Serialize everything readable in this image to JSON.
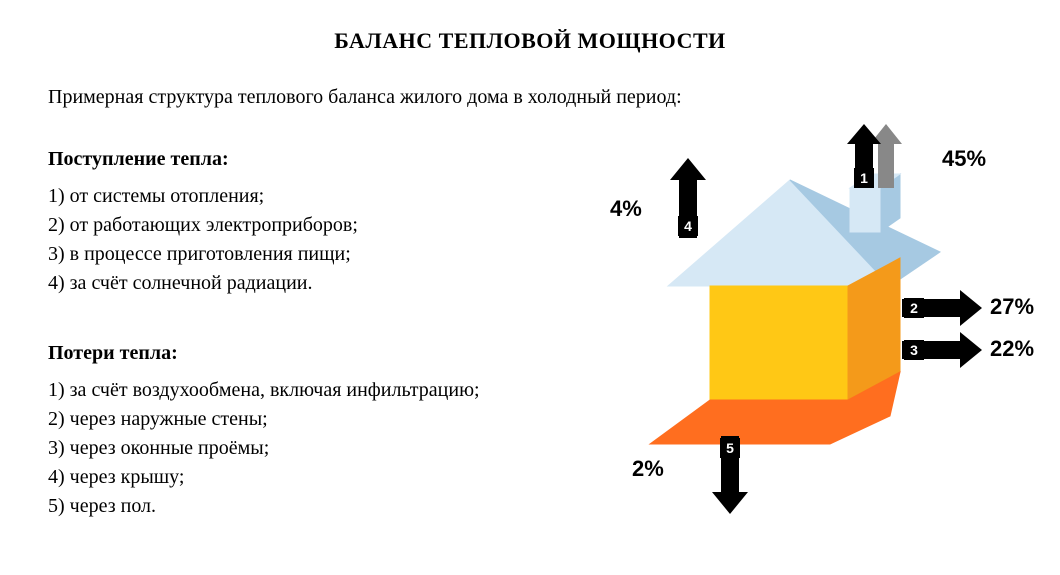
{
  "title": "БАЛАНС ТЕПЛОВОЙ МОЩНОСТИ",
  "subtitle": "Примерная структура теплового баланса жилого дома в холодный период:",
  "gains": {
    "heading": "Поступление тепла:",
    "items": [
      "1) от системы отопления;",
      "2) от работающих электроприборов;",
      "3) в процессе приготовления пищи;",
      "4) за счёт солнечной радиации."
    ]
  },
  "losses": {
    "heading": "Потери тепла:",
    "items": [
      "1) за счёт воздухообмена, включая инфильтрацию;",
      "2) через наружные стены;",
      "3) через оконные проёмы;",
      "4) через крышу;",
      "5) через пол."
    ]
  },
  "diagram": {
    "type": "infographic",
    "background_color": "#ffffff",
    "arrow_color": "#000000",
    "arrow_secondary_color": "#888888",
    "num_box_fill": "#000000",
    "num_box_text": "#ffffff",
    "roof_top_color": "#d6e8f5",
    "roof_side_color": "#a6c9e2",
    "wall_front_color": "#ffc815",
    "wall_side_color": "#f49a1a",
    "floor_color": "#ff6e1f",
    "chimney_top_color": "#d6e8f5",
    "chimney_side_color": "#a6c9e2",
    "labels": {
      "roof": {
        "num": "4",
        "pct": "4%"
      },
      "chimney": {
        "num": "1",
        "pct": "45%"
      },
      "wall": {
        "num": "2",
        "pct": "27%"
      },
      "window": {
        "num": "3",
        "pct": "22%"
      },
      "floor": {
        "num": "5",
        "pct": "2%"
      }
    },
    "pct_font_family": "Arial",
    "pct_font_size_pt": 16,
    "aspect_w": 470,
    "aspect_h": 420
  }
}
